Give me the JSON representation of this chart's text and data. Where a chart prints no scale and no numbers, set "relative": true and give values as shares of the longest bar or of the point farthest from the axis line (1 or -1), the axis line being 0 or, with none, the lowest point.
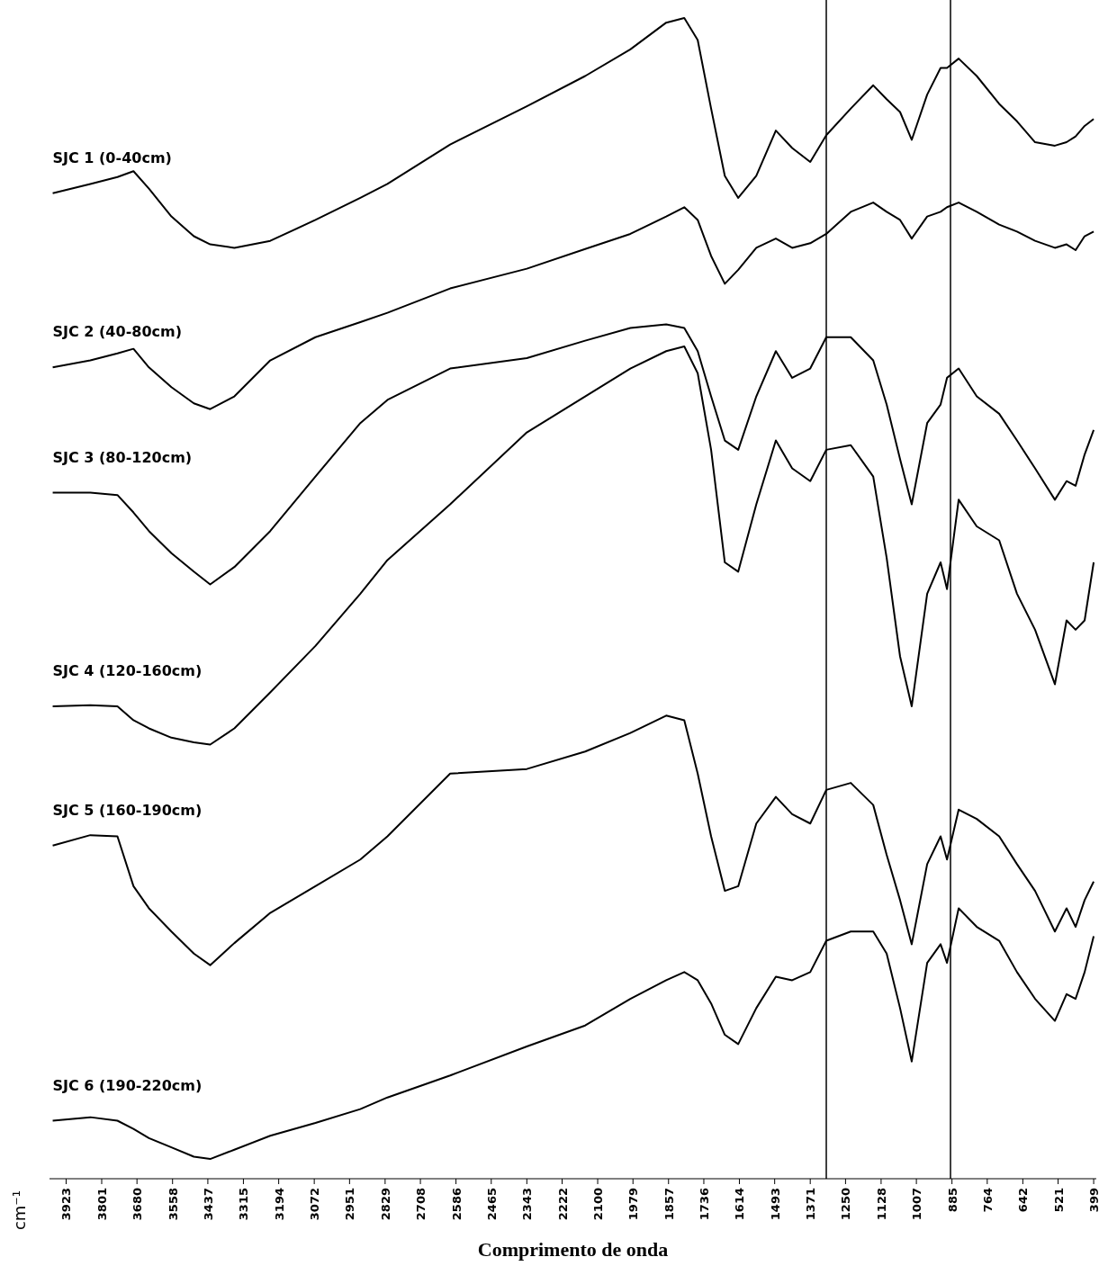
{
  "chart_data": {
    "type": "line",
    "relative": true,
    "xlabel": "Comprimento de onda",
    "annotations": [
      "cm⁻¹"
    ],
    "x": [
      3969,
      3840,
      3747,
      3692,
      3639,
      3562,
      3485,
      3429,
      3346,
      3223,
      3068,
      2914,
      2821,
      2606,
      2343,
      2143,
      1988,
      1865,
      1803,
      1757,
      1711,
      1664,
      1618,
      1556,
      1489,
      1433,
      1371,
      1316,
      1232,
      1155,
      1109,
      1063,
      1023,
      970,
      924,
      902,
      862,
      800,
      723,
      662,
      600,
      532,
      492,
      461,
      430,
      399
    ],
    "xlim": [
      3980,
      390
    ],
    "xticks": [
      3923,
      3801,
      3680,
      3558,
      3437,
      3315,
      3194,
      3072,
      2951,
      2829,
      2708,
      2586,
      2465,
      2343,
      2222,
      2100,
      1979,
      1857,
      1736,
      1614,
      1493,
      1371,
      1250,
      1128,
      1007,
      885,
      764,
      642,
      521,
      399
    ],
    "ref_lines": [
      {
        "axis": "x",
        "value": 1316,
        "color": "#000000"
      },
      {
        "axis": "x",
        "value": 890,
        "color": "#000000"
      }
    ],
    "series": [
      {
        "name": "SJC 1 (0-40cm)",
        "color": "#000000",
        "values": [
          0.849,
          0.857,
          0.863,
          0.868,
          0.853,
          0.829,
          0.812,
          0.805,
          0.802,
          0.808,
          0.826,
          0.845,
          0.857,
          0.891,
          0.924,
          0.95,
          0.973,
          0.996,
          1.0,
          0.981,
          0.922,
          0.864,
          0.845,
          0.864,
          0.903,
          0.888,
          0.876,
          0.899,
          0.922,
          0.942,
          0.93,
          0.919,
          0.895,
          0.934,
          0.957,
          0.957,
          0.965,
          0.95,
          0.926,
          0.911,
          0.893,
          0.89,
          0.893,
          0.898,
          0.907,
          0.913
        ]
      },
      {
        "name": "SJC 2 (40-80cm)",
        "color": "#000000",
        "values": [
          0.699,
          0.705,
          0.711,
          0.715,
          0.699,
          0.682,
          0.668,
          0.663,
          0.674,
          0.705,
          0.725,
          0.738,
          0.746,
          0.767,
          0.784,
          0.801,
          0.814,
          0.829,
          0.837,
          0.826,
          0.795,
          0.771,
          0.783,
          0.802,
          0.81,
          0.802,
          0.806,
          0.814,
          0.833,
          0.841,
          0.833,
          0.826,
          0.81,
          0.829,
          0.833,
          0.837,
          0.841,
          0.833,
          0.822,
          0.816,
          0.808,
          0.802,
          0.805,
          0.8,
          0.812,
          0.816
        ]
      },
      {
        "name": "SJC 3 (80-120cm)",
        "color": "#000000",
        "values": [
          0.591,
          0.591,
          0.589,
          0.574,
          0.558,
          0.539,
          0.523,
          0.512,
          0.527,
          0.558,
          0.605,
          0.651,
          0.671,
          0.698,
          0.707,
          0.722,
          0.733,
          0.736,
          0.733,
          0.713,
          0.674,
          0.636,
          0.628,
          0.674,
          0.713,
          0.69,
          0.698,
          0.725,
          0.725,
          0.705,
          0.667,
          0.62,
          0.581,
          0.651,
          0.667,
          0.69,
          0.698,
          0.674,
          0.659,
          0.636,
          0.612,
          0.585,
          0.601,
          0.597,
          0.624,
          0.645
        ]
      },
      {
        "name": "SJC 4 (120-160cm)",
        "color": "#000000",
        "values": [
          0.407,
          0.408,
          0.407,
          0.395,
          0.388,
          0.38,
          0.376,
          0.374,
          0.388,
          0.419,
          0.459,
          0.504,
          0.533,
          0.581,
          0.643,
          0.674,
          0.698,
          0.713,
          0.717,
          0.694,
          0.628,
          0.531,
          0.523,
          0.581,
          0.636,
          0.612,
          0.601,
          0.628,
          0.632,
          0.605,
          0.535,
          0.45,
          0.407,
          0.504,
          0.531,
          0.508,
          0.585,
          0.562,
          0.55,
          0.504,
          0.473,
          0.426,
          0.481,
          0.473,
          0.481,
          0.531
        ]
      },
      {
        "name": "SJC 5 (160-190cm)",
        "color": "#000000",
        "values": [
          0.287,
          0.296,
          0.295,
          0.252,
          0.233,
          0.213,
          0.194,
          0.184,
          0.203,
          0.229,
          0.252,
          0.275,
          0.295,
          0.349,
          0.353,
          0.368,
          0.384,
          0.399,
          0.395,
          0.349,
          0.295,
          0.248,
          0.252,
          0.306,
          0.329,
          0.314,
          0.306,
          0.335,
          0.341,
          0.322,
          0.279,
          0.24,
          0.202,
          0.271,
          0.295,
          0.275,
          0.318,
          0.31,
          0.295,
          0.271,
          0.248,
          0.213,
          0.233,
          0.217,
          0.24,
          0.256
        ]
      },
      {
        "name": "SJC 6 (190-220cm)",
        "color": "#000000",
        "values": [
          0.05,
          0.053,
          0.05,
          0.043,
          0.035,
          0.027,
          0.019,
          0.017,
          0.025,
          0.037,
          0.048,
          0.06,
          0.07,
          0.089,
          0.114,
          0.132,
          0.155,
          0.171,
          0.178,
          0.171,
          0.151,
          0.124,
          0.116,
          0.147,
          0.174,
          0.171,
          0.178,
          0.205,
          0.213,
          0.213,
          0.194,
          0.147,
          0.101,
          0.186,
          0.202,
          0.186,
          0.233,
          0.217,
          0.205,
          0.178,
          0.155,
          0.136,
          0.159,
          0.155,
          0.178,
          0.209
        ]
      }
    ]
  }
}
